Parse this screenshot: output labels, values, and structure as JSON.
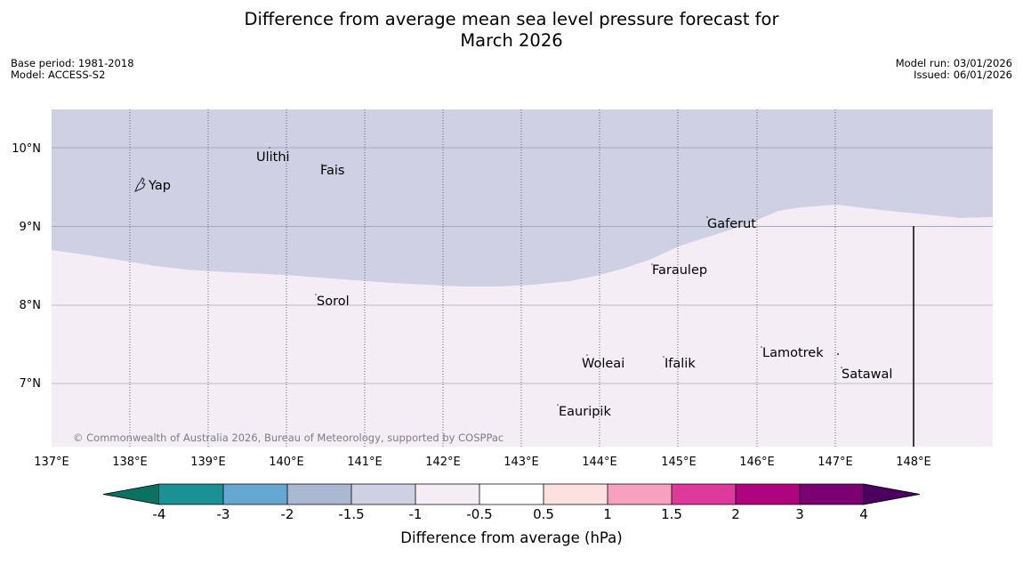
{
  "title": {
    "line1": "Difference from average mean sea level pressure forecast for",
    "line2": "March 2026"
  },
  "meta": {
    "base_period": "Base period: 1981-2018",
    "model": "Model: ACCESS-S2",
    "model_run": "Model run: 03/01/2026",
    "issued": "Issued: 06/01/2026"
  },
  "map": {
    "lat_labels": [
      "10°N",
      "9°N",
      "8°N",
      "7°N"
    ],
    "lon_labels": [
      "137°E",
      "138°E",
      "139°E",
      "140°E",
      "141°E",
      "142°E",
      "143°E",
      "144°E",
      "145°E",
      "146°E",
      "147°E",
      "148°E"
    ],
    "places": [
      {
        "name": "Ulithi"
      },
      {
        "name": "Fais"
      },
      {
        "name": "Yap"
      },
      {
        "name": "Gaferut"
      },
      {
        "name": "Faraulep"
      },
      {
        "name": "Sorol"
      },
      {
        "name": "Lamotrek"
      },
      {
        "name": "Woleai"
      },
      {
        "name": "Ifalik"
      },
      {
        "name": "Satawal"
      },
      {
        "name": "Eauripik"
      }
    ],
    "copyright": "© Commonwealth of Australia 2026, Bureau of Meteorology, supported by COSPPac",
    "colors": {
      "below_avg_region": "#cfd0e3",
      "above_avg_region": "#f5edf6"
    }
  },
  "colorbar": {
    "ticks": [
      "-4",
      "-3",
      "-2",
      "-1.5",
      "-1",
      "-0.5",
      "0.5",
      "1",
      "1.5",
      "2",
      "3",
      "4"
    ],
    "colors": [
      "#0b7262",
      "#1b9196",
      "#65a9d2",
      "#abb8d2",
      "#cfd0e3",
      "#f5edf6",
      "#ffffff",
      "#fde0e0",
      "#f8a0c0",
      "#de3a9c",
      "#b0047f",
      "#7b0072",
      "#4b0060"
    ],
    "label": "Difference from average (hPa)"
  }
}
